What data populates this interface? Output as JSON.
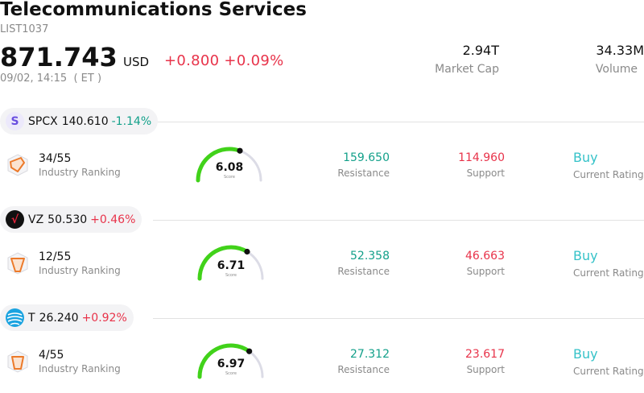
{
  "header": {
    "title": "Telecommunications Services",
    "code": "LIST1037",
    "price": "871.743",
    "currency": "USD",
    "change": "+0.800 +0.09%",
    "timestamp": "09/02, 14:15  ( ET )",
    "market_cap": {
      "value": "2.94T",
      "label": "Market Cap"
    },
    "volume": {
      "value": "34.33M",
      "label": "Volume"
    }
  },
  "colors": {
    "up": "#e8334a",
    "down": "#13a08a",
    "rating": "#35c2c8",
    "gauge_green": "#41d21a",
    "gauge_track": "#dcdce6"
  },
  "stocks": [
    {
      "logo_icon": "spcx-s-logo-icon",
      "logo_letter": "S",
      "symbol": "SPCX",
      "price": "140.610",
      "change": "-1.14%",
      "direction": "down",
      "rank": "34/55",
      "rank_label": "Industry Ranking",
      "score": "6.08",
      "score_value": 6.08,
      "score_label": "Score",
      "resistance": "159.650",
      "resistance_label": "Resistance",
      "support": "114.960",
      "support_label": "Support",
      "rating": "Buy",
      "rating_label": "Current Rating"
    },
    {
      "logo_icon": "verizon-check-logo-icon",
      "logo_letter": "√",
      "symbol": "VZ",
      "price": "50.530",
      "change": "+0.46%",
      "direction": "up",
      "rank": "12/55",
      "rank_label": "Industry Ranking",
      "score": "6.71",
      "score_value": 6.71,
      "score_label": "Score",
      "resistance": "52.358",
      "resistance_label": "Resistance",
      "support": "46.663",
      "support_label": "Support",
      "rating": "Buy",
      "rating_label": "Current Rating"
    },
    {
      "logo_icon": "att-globe-logo-icon",
      "logo_letter": "",
      "symbol": "T",
      "price": "26.240",
      "change": "+0.92%",
      "direction": "up",
      "rank": "4/55",
      "rank_label": "Industry Ranking",
      "score": "6.97",
      "score_value": 6.97,
      "score_label": "Score",
      "resistance": "27.312",
      "resistance_label": "Resistance",
      "support": "23.617",
      "support_label": "Support",
      "rating": "Buy",
      "rating_label": "Current Rating"
    }
  ]
}
